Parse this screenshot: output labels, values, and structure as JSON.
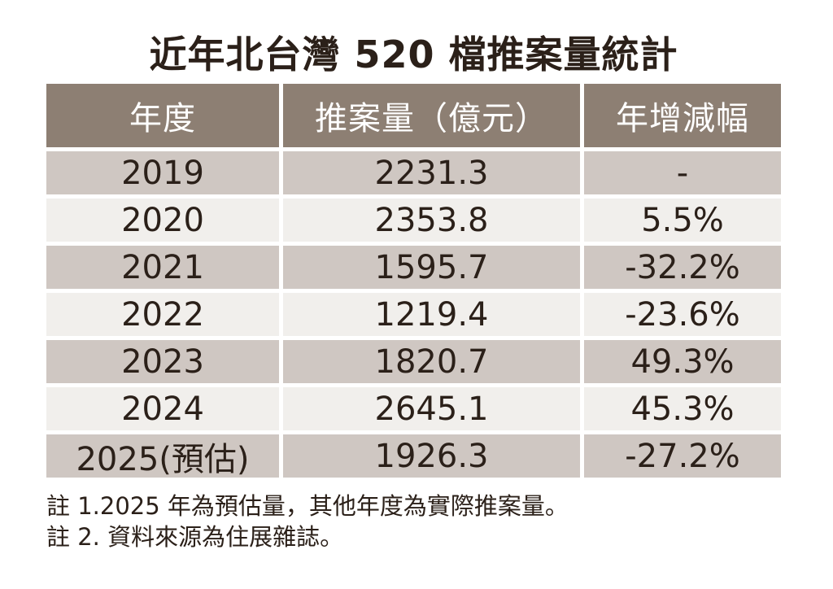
{
  "chart_data": {
    "type": "table",
    "title": "近年北台灣 520 檔推案量統計",
    "columns": [
      "年度",
      "推案量（億元）",
      "年增減幅"
    ],
    "rows": [
      {
        "year": "2019",
        "volume": "2231.3",
        "change": "-"
      },
      {
        "year": "2020",
        "volume": "2353.8",
        "change": "5.5%"
      },
      {
        "year": "2021",
        "volume": "1595.7",
        "change": "-32.2%"
      },
      {
        "year": "2022",
        "volume": "1219.4",
        "change": "-23.6%"
      },
      {
        "year": "2023",
        "volume": "1820.7",
        "change": "49.3%"
      },
      {
        "year": "2024",
        "volume": "2645.1",
        "change": "45.3%"
      },
      {
        "year": "2025(預估)",
        "volume": "1926.3",
        "change": "-27.2%"
      }
    ],
    "notes": [
      "註 1.2025 年為預估量，其他年度為實際推案量。",
      "註 2. 資料來源為住展雜誌。"
    ],
    "layout_hints": {
      "row_shading": [
        "dark",
        "light",
        "dark",
        "light",
        "dark",
        "light",
        "dark"
      ]
    }
  },
  "colors": {
    "background": "#ffffff",
    "header_bg": "#8d7f73",
    "header_text": "#ffffff",
    "row_dark_bg": "#cfc7c2",
    "row_light_bg": "#f1efec",
    "text": "#2b2019",
    "cell_gap": "#ffffff"
  }
}
